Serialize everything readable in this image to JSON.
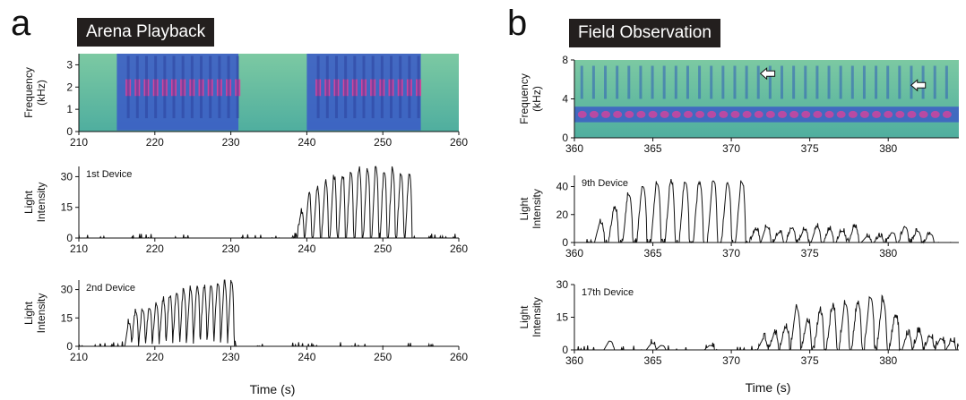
{
  "panels": [
    {
      "letter": "a",
      "title": "Arena Playback"
    },
    {
      "letter": "b",
      "title": "Field Observation"
    }
  ],
  "x_axis_title": "Time (s)",
  "colors": {
    "spec_bg": "#5fb8a0",
    "spec_call": "#3a58c8",
    "spec_peak": "#e0409a",
    "trace": "#111111",
    "title_bg": "#231f1e"
  },
  "chart_data": [
    {
      "type": "heatmap",
      "panel": "a",
      "ylabel": "Frequency (kHz)",
      "xlim": [
        210,
        260
      ],
      "ylim": [
        0,
        3.5
      ],
      "xticks": [
        210,
        220,
        230,
        240,
        250,
        260
      ],
      "yticks": [
        0,
        1,
        2,
        3
      ],
      "call_segments": [
        [
          215,
          231
        ],
        [
          240,
          255
        ]
      ],
      "pulse_interval_s": 1.2
    },
    {
      "type": "line",
      "panel": "a",
      "device_label": "1st Device",
      "ylabel": "Light Intensity",
      "xlim": [
        210,
        260
      ],
      "ylim": [
        0,
        35
      ],
      "xticks": [
        210,
        220,
        230,
        240,
        250,
        260
      ],
      "yticks": [
        0,
        15,
        30
      ],
      "pulses": [
        [
          239.2,
          12
        ],
        [
          240.2,
          20
        ],
        [
          241.3,
          24
        ],
        [
          242.4,
          27
        ],
        [
          243.5,
          29
        ],
        [
          244.6,
          30
        ],
        [
          245.7,
          32
        ],
        [
          246.8,
          33
        ],
        [
          247.9,
          33
        ],
        [
          249.0,
          34
        ],
        [
          250.1,
          32
        ],
        [
          251.2,
          33
        ],
        [
          252.3,
          31
        ],
        [
          253.4,
          31
        ]
      ],
      "active_range": [
        238,
        255
      ]
    },
    {
      "type": "line",
      "panel": "a",
      "device_label": "2nd Device",
      "ylabel": "Light Intensity",
      "xlim": [
        210,
        260
      ],
      "ylim": [
        0,
        35
      ],
      "xticks": [
        210,
        220,
        230,
        240,
        250,
        260
      ],
      "yticks": [
        0,
        15,
        30
      ],
      "pulses": [
        [
          216.5,
          12
        ],
        [
          217.4,
          18
        ],
        [
          218.3,
          19
        ],
        [
          219.2,
          20
        ],
        [
          220.1,
          22
        ],
        [
          221.0,
          24
        ],
        [
          221.9,
          26
        ],
        [
          222.8,
          28
        ],
        [
          223.7,
          29
        ],
        [
          224.6,
          30
        ],
        [
          225.5,
          30
        ],
        [
          226.4,
          31
        ],
        [
          227.3,
          32
        ],
        [
          228.2,
          33
        ],
        [
          229.1,
          33
        ],
        [
          230.0,
          34
        ]
      ],
      "active_range": [
        214.5,
        231
      ]
    },
    {
      "type": "heatmap",
      "panel": "b",
      "ylabel": "Frequency (kHz)",
      "xlim": [
        360,
        384.5
      ],
      "ylim": [
        0,
        8
      ],
      "xticks": [
        360,
        365,
        370,
        375,
        380
      ],
      "yticks": [
        0,
        4,
        8
      ],
      "arrows": [
        [
          372.2,
          6.6
        ],
        [
          381.8,
          5.4
        ]
      ]
    },
    {
      "type": "line",
      "panel": "b",
      "device_label": "9th Device",
      "ylabel": "Light Intensity",
      "xlim": [
        360,
        384.5
      ],
      "ylim": [
        0,
        48
      ],
      "xticks": [
        360,
        365,
        370,
        375,
        380
      ],
      "yticks": [
        0,
        20,
        40
      ],
      "pulses": [
        [
          361.6,
          14
        ],
        [
          362.5,
          24
        ],
        [
          363.4,
          34
        ],
        [
          364.3,
          40
        ],
        [
          365.2,
          42
        ],
        [
          366.1,
          43
        ],
        [
          367.0,
          43
        ],
        [
          367.9,
          42
        ],
        [
          368.8,
          44
        ],
        [
          369.7,
          42
        ],
        [
          370.6,
          43
        ],
        [
          371.5,
          9
        ],
        [
          372.2,
          11
        ],
        [
          373.0,
          7
        ],
        [
          373.8,
          10
        ],
        [
          374.6,
          9
        ],
        [
          375.4,
          11
        ],
        [
          376.2,
          9
        ],
        [
          377.0,
          8
        ],
        [
          377.8,
          11
        ],
        [
          378.6,
          4
        ],
        [
          379.4,
          4
        ],
        [
          380.2,
          7
        ],
        [
          381.0,
          11
        ],
        [
          381.8,
          8
        ],
        [
          382.6,
          6
        ]
      ],
      "active_range": [
        360.5,
        383
      ]
    },
    {
      "type": "line",
      "panel": "b",
      "device_label": "17th Device",
      "ylabel": "Light Intensity",
      "xlim": [
        360,
        384.5
      ],
      "ylim": [
        0,
        30
      ],
      "xticks": [
        360,
        365,
        370,
        375,
        380
      ],
      "yticks": [
        0,
        15,
        30
      ],
      "pulses": [
        [
          362.2,
          4
        ],
        [
          364.9,
          3
        ],
        [
          365.5,
          2
        ],
        [
          368.6,
          2
        ],
        [
          372.0,
          5
        ],
        [
          372.7,
          7
        ],
        [
          373.4,
          10
        ],
        [
          374.1,
          19
        ],
        [
          374.8,
          13
        ],
        [
          375.6,
          17
        ],
        [
          376.4,
          19
        ],
        [
          377.2,
          21
        ],
        [
          378.0,
          21
        ],
        [
          378.8,
          24
        ],
        [
          379.6,
          22
        ],
        [
          380.4,
          15
        ],
        [
          381.2,
          7
        ],
        [
          381.9,
          8
        ],
        [
          382.6,
          6
        ],
        [
          383.3,
          5
        ],
        [
          384.0,
          4
        ]
      ],
      "active_range": [
        371.5,
        384.5
      ]
    }
  ]
}
